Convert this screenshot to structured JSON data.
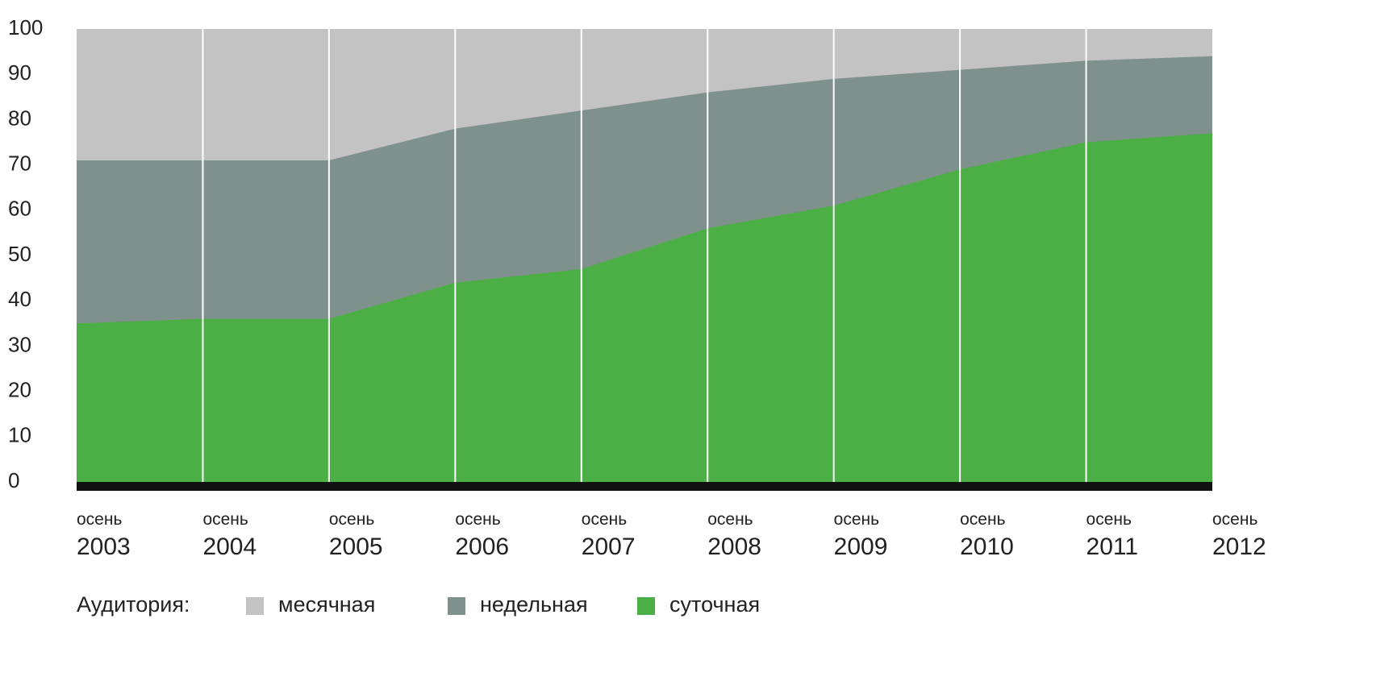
{
  "chart_data": {
    "type": "area",
    "categories": [
      "осень 2003",
      "осень 2004",
      "осень 2005",
      "осень 2006",
      "осень 2007",
      "осень 2008",
      "осень 2009",
      "осень 2010",
      "осень 2011",
      "осень 2012"
    ],
    "series": [
      {
        "name": "месячная",
        "color": "#c3c3c3",
        "values": [
          100,
          100,
          100,
          100,
          100,
          100,
          100,
          100,
          100,
          100
        ]
      },
      {
        "name": "недельная",
        "color": "#7f918d",
        "values": [
          71,
          71,
          71,
          78,
          82,
          86,
          89,
          91,
          93,
          94
        ]
      },
      {
        "name": "суточная",
        "color": "#4caf46",
        "values": [
          35,
          36,
          36,
          44,
          47,
          56,
          61,
          69,
          75,
          77
        ]
      }
    ],
    "legend_title": "Аудитория:",
    "ylim": [
      0,
      100
    ],
    "yticks": [
      0,
      10,
      20,
      30,
      40,
      50,
      60,
      70,
      80,
      90,
      100
    ]
  }
}
